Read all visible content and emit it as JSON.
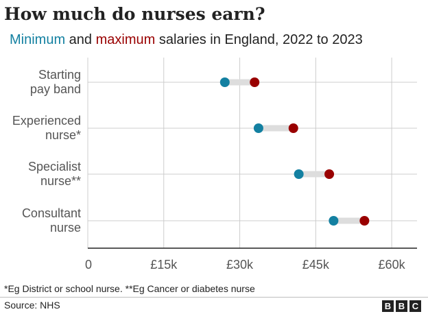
{
  "title": "How much do nurses earn?",
  "subtitle": {
    "min_word": "Minimum",
    "and_word": " and ",
    "max_word": "maximum",
    "rest": " salaries in England, 2022 to 2023"
  },
  "colors": {
    "min": "#1380A1",
    "max": "#990000",
    "connector": "#dddddd",
    "grid": "#cccccc",
    "axis": "#222222"
  },
  "footnote": "*Eg District or school nurse. **Eg Cancer or diabetes nurse",
  "source": "Source: NHS",
  "logo_letters": [
    "B",
    "B",
    "C"
  ],
  "chart_data": {
    "type": "dumbbell",
    "title": "How much do nurses earn?",
    "subtitle": "Minimum and maximum salaries in England, 2022 to 2023",
    "categories": [
      {
        "lines": [
          "Starting",
          "pay band"
        ],
        "min": 27055,
        "max": 32934
      },
      {
        "lines": [
          "Experienced",
          "nurse*"
        ],
        "min": 33706,
        "max": 40588
      },
      {
        "lines": [
          "Specialist",
          "nurse**"
        ],
        "min": 41659,
        "max": 47672
      },
      {
        "lines": [
          "Consultant",
          "nurse"
        ],
        "min": 48526,
        "max": 54619
      }
    ],
    "series": [
      {
        "name": "Minimum",
        "key": "min"
      },
      {
        "name": "Maximum",
        "key": "max"
      }
    ],
    "xlim": [
      0,
      65000
    ],
    "xticks": [
      0,
      15000,
      30000,
      45000,
      60000
    ],
    "xtick_labels": [
      "0",
      "£15k",
      "£30k",
      "£45k",
      "£60k"
    ],
    "grid": true
  }
}
